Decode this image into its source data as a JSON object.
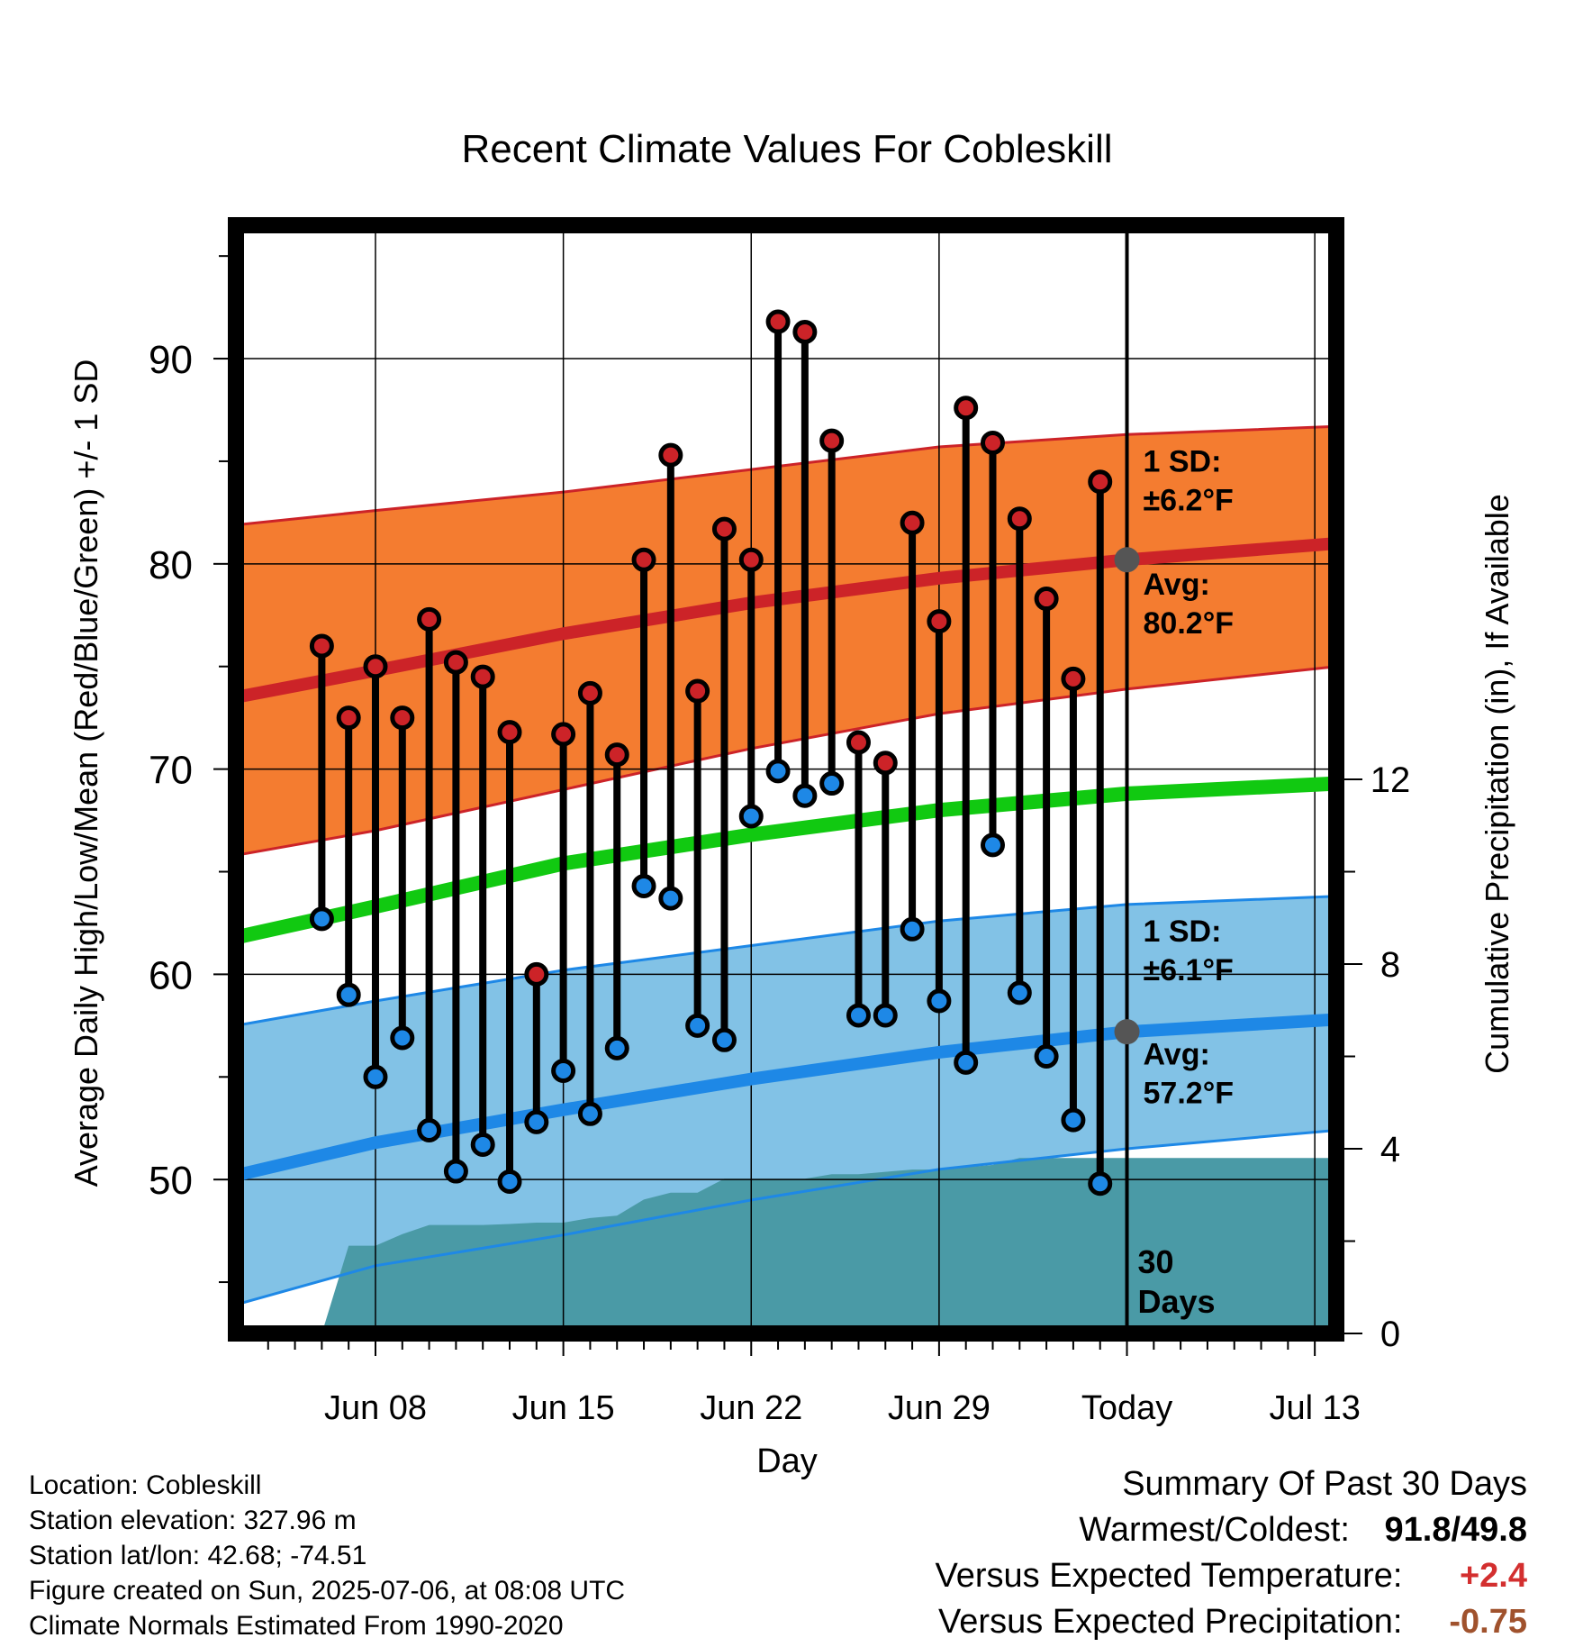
{
  "chart_data": {
    "type": "line",
    "title": "Recent Climate Values For Cobleskill",
    "xlabel": "Day",
    "ylabel": "Average Daily High/Low/Mean (Red/Blue/Green) +/- 1 SD",
    "y2label": "Cumulative Precipitation (in), If Available",
    "xlim": [
      -5.2,
      35.8
    ],
    "ylim": [
      42.5,
      96.5
    ],
    "y2lim": [
      0,
      24
    ],
    "x_ticks": [
      {
        "x": 0,
        "label": "Jun 08"
      },
      {
        "x": 7,
        "label": "Jun 15"
      },
      {
        "x": 14,
        "label": "Jun 22"
      },
      {
        "x": 21,
        "label": "Jun 29"
      },
      {
        "x": 28,
        "label": "Today"
      },
      {
        "x": 35,
        "label": "Jul 13"
      }
    ],
    "y_ticks": [
      50,
      60,
      70,
      80,
      90
    ],
    "y2_ticks": [
      0,
      4,
      8,
      12
    ],
    "today_x": 28,
    "days_label": [
      "30",
      "Days"
    ],
    "normals": {
      "x": [
        -5.2,
        0,
        7,
        14,
        21,
        28,
        35.8
      ],
      "high_avg": [
        73.5,
        74.8,
        76.6,
        78.1,
        79.3,
        80.2,
        81.0
      ],
      "high_upper": [
        81.9,
        82.6,
        83.5,
        84.6,
        85.7,
        86.3,
        86.7
      ],
      "high_lower": [
        65.8,
        67.0,
        69.0,
        71.0,
        72.7,
        73.9,
        75.0
      ],
      "mean": [
        61.8,
        63.3,
        65.4,
        66.8,
        68.0,
        68.8,
        69.3
      ],
      "low_avg": [
        50.2,
        51.8,
        53.4,
        54.9,
        56.2,
        57.2,
        57.8
      ],
      "low_upper": [
        57.5,
        58.7,
        60.2,
        61.4,
        62.6,
        63.4,
        63.8
      ],
      "low_lower": [
        43.9,
        45.8,
        47.3,
        49.0,
        50.5,
        51.5,
        52.4
      ]
    },
    "series": [
      {
        "name": "High",
        "x": [
          -2,
          -1,
          0,
          1,
          2,
          3,
          4,
          5,
          6,
          7,
          8,
          9,
          10,
          11,
          12,
          13,
          14,
          15,
          16,
          17,
          18,
          19,
          20,
          21,
          22,
          23,
          24,
          25,
          26,
          27
        ],
        "values": [
          76.0,
          72.5,
          75.0,
          72.5,
          77.3,
          75.2,
          74.5,
          71.8,
          60.0,
          71.7,
          73.7,
          70.7,
          80.2,
          85.3,
          73.8,
          81.7,
          80.2,
          91.8,
          91.3,
          86.0,
          71.3,
          70.3,
          82.0,
          77.2,
          87.6,
          85.9,
          82.2,
          78.3,
          74.4,
          84.0
        ]
      },
      {
        "name": "Low",
        "x": [
          -2,
          -1,
          0,
          1,
          2,
          3,
          4,
          5,
          6,
          7,
          8,
          9,
          10,
          11,
          12,
          13,
          14,
          15,
          16,
          17,
          18,
          19,
          20,
          21,
          22,
          23,
          24,
          25,
          26,
          27
        ],
        "values": [
          62.7,
          59.0,
          55.0,
          56.9,
          52.4,
          50.4,
          51.7,
          49.9,
          52.8,
          55.3,
          53.2,
          56.4,
          64.3,
          63.7,
          57.5,
          56.8,
          67.7,
          69.9,
          68.7,
          69.3,
          58.0,
          58.0,
          62.2,
          58.7,
          55.7,
          66.3,
          59.1,
          56.0,
          52.9,
          49.8
        ]
      },
      {
        "name": "Precipitation",
        "x": [
          -2,
          -1,
          0,
          1,
          2,
          3,
          4,
          5,
          6,
          7,
          8,
          9,
          10,
          11,
          12,
          13,
          14,
          15,
          16,
          17,
          18,
          19,
          20,
          21,
          22,
          23,
          24,
          25,
          26,
          27,
          28,
          35.8
        ],
        "values": [
          0.0,
          1.9,
          1.9,
          2.15,
          2.35,
          2.35,
          2.35,
          2.37,
          2.4,
          2.4,
          2.5,
          2.55,
          2.9,
          3.05,
          3.05,
          3.35,
          3.35,
          3.35,
          3.35,
          3.45,
          3.45,
          3.5,
          3.55,
          3.55,
          3.6,
          3.65,
          3.8,
          3.8,
          3.8,
          3.8,
          3.8,
          3.8
        ]
      }
    ],
    "annotations": {
      "high_sd": [
        "1 SD:",
        "±6.2°F"
      ],
      "high_avg": [
        "Avg:",
        "80.2°F"
      ],
      "low_sd": [
        "1 SD:",
        "±6.1°F"
      ],
      "low_avg": [
        "Avg:",
        "57.2°F"
      ]
    },
    "colors": {
      "high_band": "#f47c30",
      "high_line": "#cc2328",
      "mean_line": "#11c911",
      "low_band": "#82c2e6",
      "low_line": "#1e88e6",
      "precip": "#4a9aa6",
      "high_dot": "#cc2328",
      "low_dot": "#1e88e6",
      "annotation": "#555555",
      "temp_anomaly": "#d32f2f",
      "precip_anomaly": "#a0522d"
    }
  },
  "footer": [
    "Location: Cobleskill",
    "Station elevation: 327.96 m",
    "Station lat/lon: 42.68; -74.51",
    "Figure created on Sun, 2025-07-06, at 08:08 UTC",
    "Climate Normals Estimated From 1990-2020"
  ],
  "summary": {
    "title": "Summary Of Past 30 Days",
    "warmest_coldest_label": "Warmest/Coldest:",
    "warmest": "91.8",
    "slash": "/",
    "coldest": "49.8",
    "temp_label": "Versus Expected Temperature:",
    "temp_value": "+2.4",
    "precip_label": "Versus Expected Precipitation:",
    "precip_value": "-0.75"
  }
}
